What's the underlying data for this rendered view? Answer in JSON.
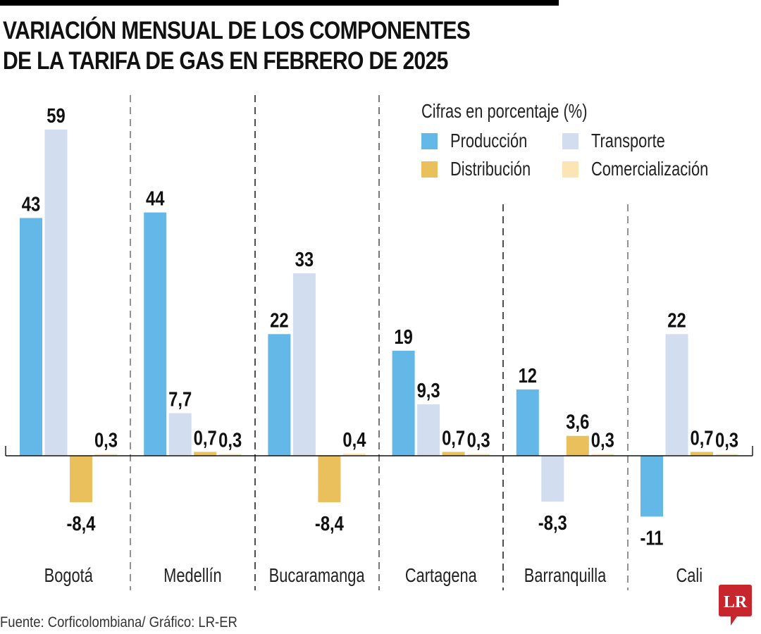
{
  "title": {
    "line1": "VARIACIÓN MENSUAL DE LOS COMPONENTES",
    "line2": "DE LA TARIFA DE GAS EN FEBRERO DE 2025"
  },
  "legend": {
    "title": "Cifras en porcentaje (%)",
    "items": [
      {
        "label": "Producción",
        "icon": "square-swatch",
        "color": "#63b8e8"
      },
      {
        "label": "Transporte",
        "icon": "square-swatch",
        "color": "#d2ddf0"
      },
      {
        "label": "Distribución",
        "icon": "square-swatch",
        "color": "#e9c05c"
      },
      {
        "label": "Comercialización",
        "icon": "square-swatch",
        "color": "#fbe5b5"
      }
    ]
  },
  "source": "Fuente: Corficolombiana/ Gráfico: LR-ER",
  "logo": {
    "text": "LR",
    "icon": "lr-speech-bubble-logo",
    "color": "#c8262d"
  },
  "chart_data": {
    "type": "bar",
    "title": "VARIACIÓN MENSUAL DE LOS COMPONENTES DE LA TARIFA DE GAS EN FEBRERO DE 2025",
    "subtitle": "Cifras en porcentaje (%)",
    "xlabel": "",
    "ylabel": "",
    "categories": [
      "Bogotá",
      "Medellín",
      "Bucaramanga",
      "Cartagena",
      "Barranquilla",
      "Cali"
    ],
    "series": [
      {
        "name": "Producción",
        "color": "#63b8e8",
        "values": [
          43,
          44,
          22,
          19,
          12,
          -11
        ],
        "labels": [
          "43",
          "44",
          "22",
          "19",
          "12",
          "-11"
        ]
      },
      {
        "name": "Transporte",
        "color": "#d2ddf0",
        "values": [
          59,
          7.7,
          33,
          9.3,
          -8.3,
          22
        ],
        "labels": [
          "59",
          "7,7",
          "33",
          "9,3",
          "-8,3",
          "22"
        ]
      },
      {
        "name": "Distribución",
        "color": "#e9c05c",
        "values": [
          -8.4,
          0.7,
          -8.4,
          0.7,
          3.6,
          0.7
        ],
        "labels": [
          "-8,4",
          "0,7",
          "-8,4",
          "0,7",
          "3,6",
          "0,7"
        ]
      },
      {
        "name": "Comercialización",
        "color": "#fbe5b5",
        "values": [
          0.3,
          0.3,
          0.4,
          0.3,
          0.3,
          0.3
        ],
        "labels": [
          "0,3",
          "0,3",
          "0,4",
          "0,3",
          "0,3",
          "0,3"
        ]
      }
    ],
    "ylim": [
      -14,
      60
    ],
    "grid": false,
    "legend_position": "top-right",
    "decimal_separator": ","
  }
}
